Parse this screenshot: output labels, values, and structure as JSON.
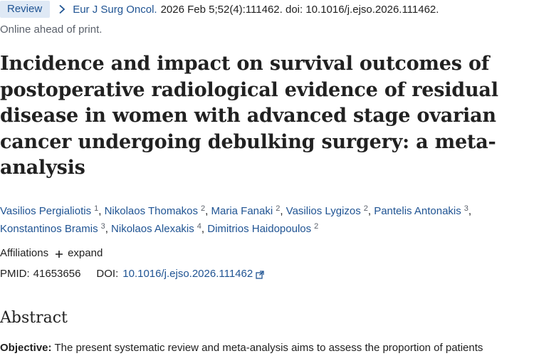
{
  "header": {
    "badge": "Review",
    "journal": "Eur J Surg Oncol.",
    "citation": "2026 Feb 5;52(4):111462. doi: 10.1016/j.ejso.2026.111462.",
    "status": "Online ahead of print."
  },
  "article": {
    "title": "Incidence and impact on survival outcomes of postoperative radiological evidence of residual disease in women with advanced stage ovarian cancer undergoing debulking surgery: a meta-analysis",
    "authors": [
      {
        "name": "Vasilios Pergialiotis",
        "aff": "1"
      },
      {
        "name": "Nikolaos Thomakos",
        "aff": "2"
      },
      {
        "name": "Maria Fanaki",
        "aff": "2"
      },
      {
        "name": "Vasilios Lygizos",
        "aff": "2"
      },
      {
        "name": "Pantelis Antonakis",
        "aff": "3"
      },
      {
        "name": "Konstantinos Bramis",
        "aff": "3"
      },
      {
        "name": "Nikolaos Alexakis",
        "aff": "4"
      },
      {
        "name": "Dimitrios Haidopoulos",
        "aff": "2"
      }
    ],
    "affiliations_label": "Affiliations",
    "expand_label": "expand",
    "pmid_label": "PMID:",
    "pmid": "41653656",
    "doi_label": "DOI:",
    "doi": "10.1016/j.ejso.2026.111462"
  },
  "abstract": {
    "heading": "Abstract",
    "objective_label": "Objective:",
    "objective_text": "The present systematic review and meta-analysis aims to assess the proportion of patients"
  },
  "colors": {
    "link": "#205493",
    "badge_bg": "#dfe9f5",
    "text": "#212121",
    "muted": "#5b616b"
  },
  "icons": {
    "chevron": "chevron-right-icon",
    "plus": "plus-icon",
    "external": "external-link-icon"
  }
}
